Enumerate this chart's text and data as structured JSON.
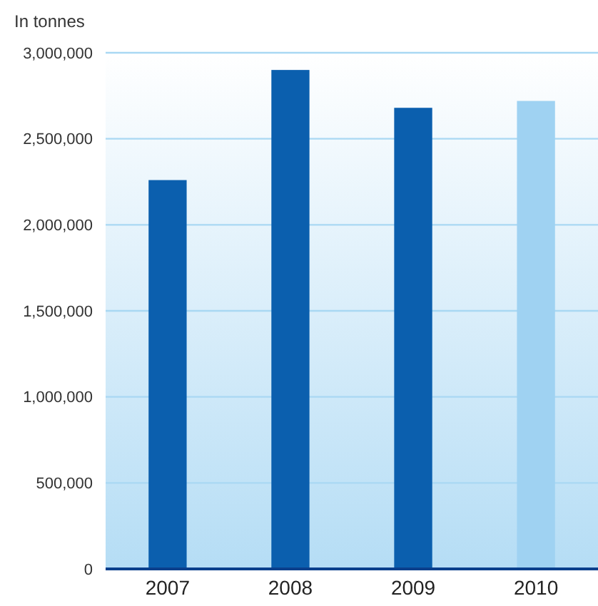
{
  "chart_data": {
    "type": "bar",
    "ylabel": "In tonnes",
    "categories": [
      "2007",
      "2008",
      "2009",
      "2010"
    ],
    "values": [
      2260000,
      2900000,
      2680000,
      2720000
    ],
    "colors": [
      "#0b5fae",
      "#0b5fae",
      "#0b5fae",
      "#9fd2f2"
    ],
    "ylim": [
      0,
      3000000
    ],
    "yticks": [
      {
        "value": 0,
        "label": "0"
      },
      {
        "value": 500000,
        "label": "500,000"
      },
      {
        "value": 1000000,
        "label": "1,000,000"
      },
      {
        "value": 1500000,
        "label": "1,500,000"
      },
      {
        "value": 2000000,
        "label": "2,000,000"
      },
      {
        "value": 2500000,
        "label": "2,500,000"
      },
      {
        "value": 3000000,
        "label": "3,000,000"
      }
    ],
    "grid": "y"
  }
}
